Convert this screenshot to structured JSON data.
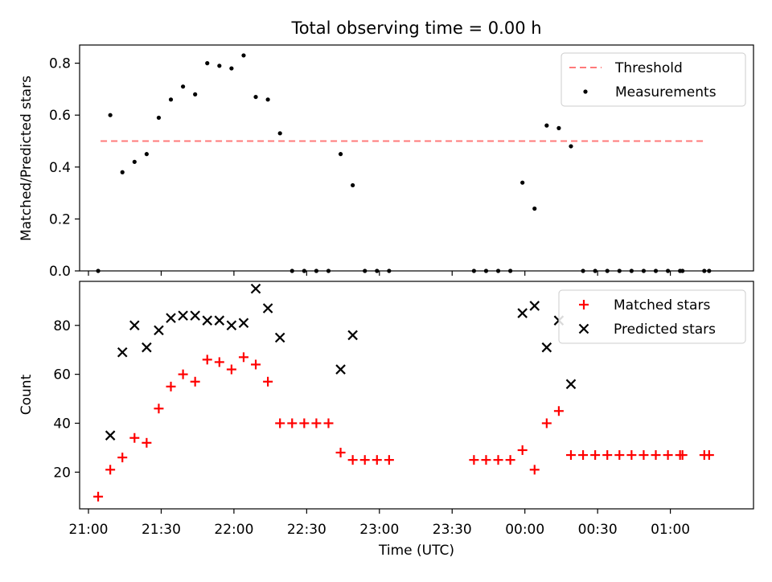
{
  "chart_data": {
    "title": "Total observing time = 0.00 h",
    "xlabel": "Time (UTC)",
    "x_tick_labels": [
      "21:00",
      "21:30",
      "22:00",
      "22:30",
      "23:00",
      "23:30",
      "00:00",
      "00:30",
      "01:00"
    ],
    "panels": [
      {
        "id": "ratio",
        "type": "scatter",
        "ylabel": "Matched/Predicted stars",
        "ylim": [
          0,
          0.87
        ],
        "y_ticks": [
          "0.0",
          "0.2",
          "0.4",
          "0.6",
          "0.8"
        ],
        "legend_position": "top-right",
        "threshold": {
          "name": "Threshold",
          "value": 0.5,
          "x_start": "21:05",
          "x_end": "01:15",
          "color": "#ff7a7a"
        },
        "series": [
          {
            "name": "Measurements",
            "color": "#000000",
            "x": [
              "21:04",
              "21:09",
              "21:14",
              "21:19",
              "21:24",
              "21:29",
              "21:34",
              "21:39",
              "21:44",
              "21:49",
              "21:54",
              "21:59",
              "22:04",
              "22:09",
              "22:14",
              "22:19",
              "22:24",
              "22:29",
              "22:34",
              "22:39",
              "22:44",
              "22:49",
              "22:54",
              "22:59",
              "23:04",
              "23:39",
              "23:44",
              "23:49",
              "23:54",
              "23:59",
              "00:04",
              "00:09",
              "00:14",
              "00:19",
              "00:24",
              "00:29",
              "00:34",
              "00:39",
              "00:44",
              "00:49",
              "00:54",
              "00:59",
              "01:04",
              "01:05",
              "01:14",
              "01:16"
            ],
            "y": [
              0.0,
              0.6,
              0.38,
              0.42,
              0.45,
              0.59,
              0.66,
              0.71,
              0.68,
              0.8,
              0.79,
              0.78,
              0.83,
              0.67,
              0.66,
              0.53,
              0.0,
              0.0,
              0.0,
              0.0,
              0.45,
              0.33,
              0.0,
              0.0,
              0.0,
              0.0,
              0.0,
              0.0,
              0.0,
              0.34,
              0.24,
              0.56,
              0.55,
              0.48,
              0.0,
              0.0,
              0.0,
              0.0,
              0.0,
              0.0,
              0.0,
              0.0,
              0.0,
              0.0,
              0.0,
              0.0
            ]
          }
        ]
      },
      {
        "id": "count",
        "type": "scatter",
        "ylabel": "Count",
        "ylim": [
          5,
          98
        ],
        "y_ticks": [
          "20",
          "40",
          "60",
          "80"
        ],
        "legend_position": "top-right",
        "series": [
          {
            "name": "Matched stars",
            "color": "#ff0000",
            "marker": "plus",
            "x": [
              "21:04",
              "21:09",
              "21:14",
              "21:19",
              "21:24",
              "21:29",
              "21:34",
              "21:39",
              "21:44",
              "21:49",
              "21:54",
              "21:59",
              "22:04",
              "22:09",
              "22:14",
              "22:19",
              "22:24",
              "22:29",
              "22:34",
              "22:39",
              "22:44",
              "22:49",
              "22:54",
              "22:59",
              "23:04",
              "23:39",
              "23:44",
              "23:49",
              "23:54",
              "23:59",
              "00:04",
              "00:09",
              "00:14",
              "00:19",
              "00:24",
              "00:29",
              "00:34",
              "00:39",
              "00:44",
              "00:49",
              "00:54",
              "00:59",
              "01:04",
              "01:05",
              "01:14",
              "01:16"
            ],
            "y": [
              10,
              21,
              26,
              34,
              32,
              46,
              55,
              60,
              57,
              66,
              65,
              62,
              67,
              64,
              57,
              40,
              40,
              40,
              40,
              40,
              28,
              25,
              25,
              25,
              25,
              25,
              25,
              25,
              25,
              29,
              21,
              40,
              45,
              27,
              27,
              27,
              27,
              27,
              27,
              27,
              27,
              27,
              27,
              27,
              27,
              27
            ]
          },
          {
            "name": "Predicted stars",
            "color": "#000000",
            "marker": "x",
            "x": [
              "21:09",
              "21:14",
              "21:19",
              "21:24",
              "21:29",
              "21:34",
              "21:39",
              "21:44",
              "21:49",
              "21:54",
              "21:59",
              "22:04",
              "22:09",
              "22:14",
              "22:19",
              "22:44",
              "22:49",
              "23:59",
              "00:04",
              "00:09",
              "00:14",
              "00:19"
            ],
            "y": [
              35,
              69,
              80,
              71,
              78,
              83,
              84,
              84,
              82,
              82,
              80,
              81,
              95,
              87,
              75,
              62,
              76,
              85,
              88,
              71,
              82,
              56
            ]
          }
        ]
      }
    ]
  }
}
